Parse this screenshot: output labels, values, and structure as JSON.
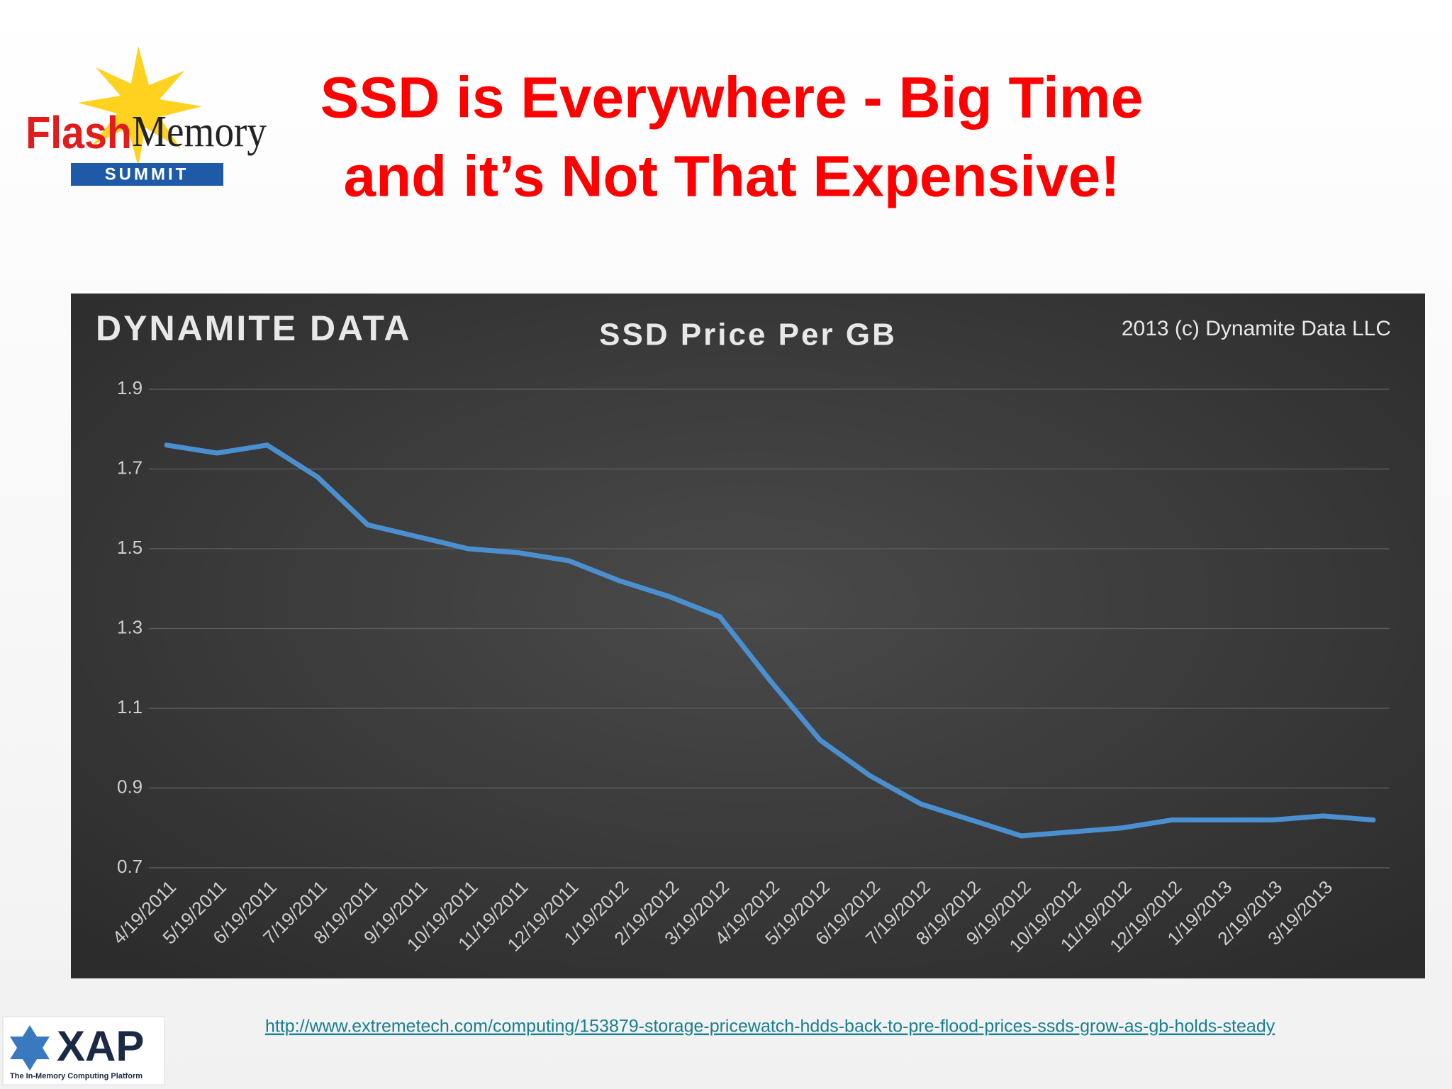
{
  "slide": {
    "logo_flash": "Flash",
    "logo_memory": "Memory",
    "logo_summit": "SUMMIT",
    "title_line1": "SSD is Everywhere - Big Time",
    "title_line2": "and it’s Not That Expensive!",
    "source_url": "http://www.extremetech.com/computing/153879-storage-pricewatch-hdds-back-to-pre-flood-prices-ssds-grow-as-gb-holds-steady",
    "xap_name": "XAP",
    "xap_tagline": "The In-Memory Computing Platform"
  },
  "chart_data": {
    "type": "line",
    "brand": "DYNAMITE DATA",
    "title": "SSD Price Per GB",
    "copyright": "2013 (c) Dynamite Data LLC",
    "categories": [
      "4/19/2011",
      "5/19/2011",
      "6/19/2011",
      "7/19/2011",
      "8/19/2011",
      "9/19/2011",
      "10/19/2011",
      "11/19/2011",
      "12/19/2011",
      "1/19/2012",
      "2/19/2012",
      "3/19/2012",
      "4/19/2012",
      "5/19/2012",
      "6/19/2012",
      "7/19/2012",
      "8/19/2012",
      "9/19/2012",
      "10/19/2012",
      "11/19/2012",
      "12/19/2012",
      "1/19/2013",
      "2/19/2013",
      "3/19/2013",
      null
    ],
    "values": [
      1.76,
      1.74,
      1.76,
      1.68,
      1.56,
      1.53,
      1.5,
      1.49,
      1.47,
      1.42,
      1.38,
      1.33,
      1.17,
      1.02,
      0.93,
      0.86,
      0.82,
      0.78,
      0.79,
      0.8,
      0.82,
      0.82,
      0.82,
      0.83,
      0.82
    ],
    "color": "#4a90d0",
    "ylim": [
      0.7,
      1.9
    ],
    "yticks": [
      0.7,
      0.9,
      1.1,
      1.3,
      1.5,
      1.7,
      1.9
    ],
    "grid": true
  }
}
